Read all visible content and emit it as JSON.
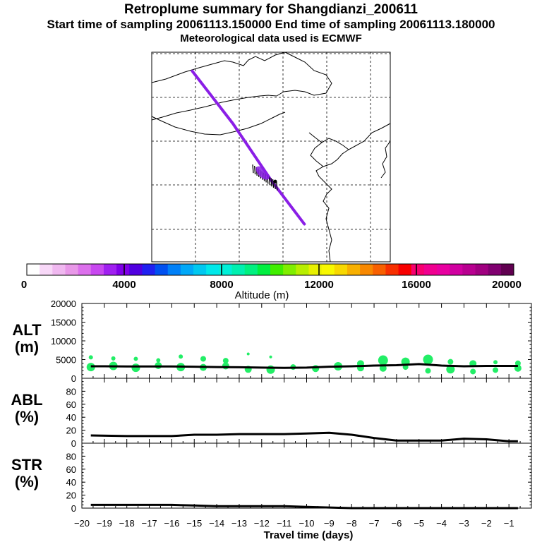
{
  "header": {
    "title": "Retroplume summary for Shangdianzi_200611",
    "sampling_line": "Start time of sampling 20061113.150000     End time of sampling 20061113.180000",
    "met_line": "Meteorological data used is ECMWF"
  },
  "colors": {
    "plume": "#8a1ee6",
    "receptor": "#000000",
    "alt_blob": "#22ee66",
    "line": "#000000",
    "grid": "#000000"
  },
  "colorbar": {
    "label": "Altitude (m)",
    "ticks": [
      "0",
      "4000",
      "8000",
      "12000",
      "16000",
      "20000"
    ],
    "colors": [
      "#ffffff",
      "#f8d8f8",
      "#f0b8f0",
      "#e898e8",
      "#dc70ec",
      "#c848f0",
      "#a020f0",
      "#8000e8",
      "#5000e0",
      "#2020f0",
      "#0050f0",
      "#0080f8",
      "#00a8f8",
      "#00c8f0",
      "#00e8ea",
      "#00f0d8",
      "#00f0b0",
      "#00f080",
      "#00ee40",
      "#40ee00",
      "#80ee00",
      "#b8ee00",
      "#e8f000",
      "#f8f800",
      "#f8d800",
      "#f8b000",
      "#f88800",
      "#f86000",
      "#f83000",
      "#f80000",
      "#f80070",
      "#f00090",
      "#e800a0",
      "#d000a0",
      "#b80090",
      "#a00080",
      "#800070",
      "#600050"
    ]
  },
  "chart_data": [
    {
      "type": "map",
      "panel": "trajectory-map",
      "plume_path_frac": [
        [
          0.17,
          0.09
        ],
        [
          0.34,
          0.34
        ],
        [
          0.5,
          0.61
        ],
        [
          0.64,
          0.82
        ]
      ],
      "receptor": "Shangdianzi"
    },
    {
      "type": "scatter+line",
      "panel": "ALT",
      "ylabel": "ALT\n(m)",
      "ylim": [
        0,
        20000
      ],
      "yticks": [
        "20000",
        "15000",
        "10000",
        "5000",
        "0"
      ],
      "x": [
        -19.6,
        -19,
        -18,
        -17,
        -16,
        -15,
        -14,
        -13,
        -12,
        -11,
        -10,
        -9,
        -8,
        -7,
        -6,
        -5,
        -4,
        -3,
        -2,
        -1,
        -0.6
      ],
      "mean_line": [
        3200,
        3200,
        3150,
        3150,
        3150,
        3100,
        3000,
        2950,
        2850,
        2800,
        2850,
        3100,
        3200,
        3400,
        3500,
        3800,
        3400,
        3200,
        3300,
        3300,
        3300
      ],
      "blobs": [
        {
          "x": -19.6,
          "y": 3000,
          "s": 6
        },
        {
          "x": -19.6,
          "y": 5600,
          "s": 3
        },
        {
          "x": -18.6,
          "y": 3300,
          "s": 6
        },
        {
          "x": -18.6,
          "y": 5300,
          "s": 3
        },
        {
          "x": -17.6,
          "y": 2800,
          "s": 6
        },
        {
          "x": -17.6,
          "y": 5200,
          "s": 3
        },
        {
          "x": -16.6,
          "y": 3400,
          "s": 5
        },
        {
          "x": -16.6,
          "y": 4800,
          "s": 3
        },
        {
          "x": -15.6,
          "y": 3000,
          "s": 6
        },
        {
          "x": -15.6,
          "y": 5800,
          "s": 3
        },
        {
          "x": -14.6,
          "y": 2900,
          "s": 5
        },
        {
          "x": -14.6,
          "y": 5200,
          "s": 4
        },
        {
          "x": -13.6,
          "y": 3300,
          "s": 5
        },
        {
          "x": -13.6,
          "y": 4700,
          "s": 4
        },
        {
          "x": -12.6,
          "y": 2400,
          "s": 5
        },
        {
          "x": -12.6,
          "y": 6500,
          "s": 2
        },
        {
          "x": -11.6,
          "y": 2300,
          "s": 6
        },
        {
          "x": -11.6,
          "y": 5700,
          "s": 2
        },
        {
          "x": -10.6,
          "y": 3000,
          "s": 4
        },
        {
          "x": -9.6,
          "y": 2600,
          "s": 5
        },
        {
          "x": -8.6,
          "y": 3200,
          "s": 6
        },
        {
          "x": -7.6,
          "y": 2800,
          "s": 5
        },
        {
          "x": -7.6,
          "y": 3900,
          "s": 5
        },
        {
          "x": -6.6,
          "y": 4800,
          "s": 7
        },
        {
          "x": -6.6,
          "y": 2700,
          "s": 5
        },
        {
          "x": -5.6,
          "y": 4400,
          "s": 6
        },
        {
          "x": -5.6,
          "y": 3000,
          "s": 4
        },
        {
          "x": -4.6,
          "y": 5000,
          "s": 7
        },
        {
          "x": -4.6,
          "y": 2000,
          "s": 4
        },
        {
          "x": -3.6,
          "y": 4400,
          "s": 4
        },
        {
          "x": -3.6,
          "y": 2400,
          "s": 6
        },
        {
          "x": -2.6,
          "y": 3900,
          "s": 5
        },
        {
          "x": -2.6,
          "y": 1800,
          "s": 4
        },
        {
          "x": -1.6,
          "y": 4300,
          "s": 3
        },
        {
          "x": -1.6,
          "y": 2200,
          "s": 4
        },
        {
          "x": -0.6,
          "y": 4000,
          "s": 4
        },
        {
          "x": -0.6,
          "y": 2700,
          "s": 5
        }
      ]
    },
    {
      "type": "line",
      "panel": "ABL",
      "ylabel": "ABL\n(%)",
      "ylim": [
        0,
        100
      ],
      "yticks": [
        "80",
        "60",
        "40",
        "20",
        "0"
      ],
      "x": [
        -19.6,
        -18,
        -17,
        -16,
        -15,
        -14,
        -13,
        -12,
        -11,
        -10,
        -9,
        -8,
        -7,
        -6,
        -5,
        -4,
        -3,
        -2,
        -1,
        -0.6
      ],
      "values": [
        12,
        11,
        11,
        11,
        13,
        13,
        14,
        14,
        14,
        15,
        16,
        13,
        8,
        4,
        4,
        4,
        7,
        6,
        3,
        3
      ]
    },
    {
      "type": "line",
      "panel": "STR",
      "ylabel": "STR\n(%)",
      "ylim": [
        0,
        100
      ],
      "yticks": [
        "80",
        "60",
        "40",
        "20",
        "0"
      ],
      "x": [
        -19.6,
        -18,
        -17,
        -16,
        -15,
        -14,
        -13,
        -12,
        -11,
        -10,
        -9,
        -8,
        -7,
        -6,
        -5,
        -4,
        -3,
        -2,
        -1,
        -0.6
      ],
      "values": [
        5,
        5,
        5,
        5,
        4,
        3,
        3,
        3,
        3,
        2,
        1,
        0,
        0,
        0,
        0,
        0,
        0,
        0,
        0,
        0
      ]
    }
  ],
  "xaxis": {
    "label": "Travel time (days)",
    "ticks": [
      "−20",
      "−19",
      "−18",
      "−17",
      "−16",
      "−15",
      "−14",
      "−13",
      "−12",
      "−11",
      "−10",
      "−9",
      "−8",
      "−7",
      "−6",
      "−5",
      "−4",
      "−3",
      "−2",
      "−1"
    ]
  }
}
